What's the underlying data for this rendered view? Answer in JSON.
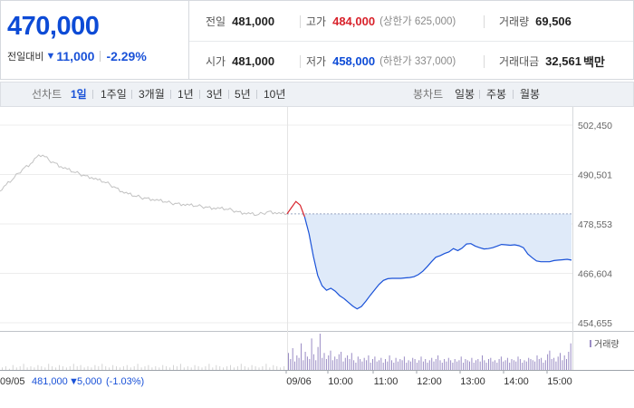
{
  "summary": {
    "price": "470,000",
    "change_label": "전일대비",
    "change_arrow": "▼",
    "change_amount": "11,000",
    "change_percent": "-2.29%",
    "stats": {
      "prev_close": {
        "label": "전일",
        "value": "481,000"
      },
      "high": {
        "label": "고가",
        "value": "484,000",
        "sub": "(상한가 625,000)"
      },
      "volume": {
        "label": "거래량",
        "value": "69,506"
      },
      "open": {
        "label": "시가",
        "value": "481,000"
      },
      "low": {
        "label": "저가",
        "value": "458,000",
        "sub": "(하한가 337,000)"
      },
      "trade_value": {
        "label": "거래대금",
        "value": "32,561",
        "unit": "백만"
      }
    }
  },
  "toolbar": {
    "line_chart_label": "선차트",
    "periods": [
      "1일",
      "1주일",
      "3개월",
      "1년",
      "3년",
      "5년",
      "10년"
    ],
    "active_period": "1일",
    "candle_label": "봉차트",
    "candles": [
      "일봉",
      "주봉",
      "월봉"
    ]
  },
  "chart_data": {
    "type": "line",
    "y_ticks": [
      "502,450",
      "490,501",
      "478,553",
      "466,604",
      "454,655"
    ],
    "y_tick_values": [
      502450,
      490501,
      478553,
      466604,
      454655
    ],
    "ylim": [
      454655,
      502450
    ],
    "reference_price": 481000,
    "x_ticks": [
      "09/06",
      "10:00",
      "11:00",
      "12:00",
      "13:00",
      "14:00",
      "15:00"
    ],
    "volume_legend": "거래량",
    "previous_day": {
      "date": "09/05",
      "close_text": "481,000",
      "arrow": "▼",
      "change_text": "5,000",
      "change_pct": "(-1.03%)"
    },
    "series": [
      {
        "values": [
          486500,
          488000,
          489200,
          490800,
          492200,
          493100,
          494700,
          495200,
          494000,
          493300,
          492400,
          491800,
          491100,
          490700,
          490200,
          489800,
          489200,
          488700,
          488100,
          487300,
          486400,
          485800,
          485300,
          485000,
          484800,
          484500,
          484200,
          483900,
          483600,
          483500,
          483300,
          483100,
          482900,
          482800,
          482600,
          482400,
          482300,
          482100,
          481900,
          481500,
          481200,
          481000,
          480700,
          481100,
          481600,
          481300,
          481000,
          481000
        ]
      },
      {
        "values": [
          481000,
          482500,
          484000,
          483100,
          480300,
          476200,
          470700,
          466100,
          463600,
          462500,
          463000,
          462300,
          461200,
          460500,
          459600,
          458700,
          458000,
          458600,
          459900,
          461300,
          462600,
          463900,
          464900,
          465300,
          465400,
          465400,
          465400,
          465500,
          465600,
          465800,
          466300,
          467100,
          468200,
          469400,
          470500,
          470900,
          471400,
          471800,
          472600,
          472100,
          472700,
          473700,
          473800,
          473200,
          472800,
          472500,
          472600,
          472800,
          473200,
          473600,
          473500,
          473400,
          473500,
          473300,
          472800,
          471300,
          470400,
          469600,
          469400,
          469400,
          469400,
          469700,
          469800,
          469900,
          470000,
          469800
        ]
      }
    ],
    "volume": [
      2,
      3,
      1,
      4,
      2,
      3,
      5,
      2,
      3,
      2,
      4,
      3,
      2,
      5,
      3,
      2,
      4,
      3,
      2,
      3,
      5,
      3,
      4,
      2,
      3,
      2,
      4,
      3,
      5,
      3,
      2,
      4,
      3,
      2,
      3,
      4,
      2,
      3,
      5,
      2,
      3,
      4,
      2,
      3,
      2,
      4,
      3,
      2,
      4,
      3,
      5,
      2,
      3,
      2,
      4,
      3,
      2,
      3,
      5,
      2,
      4,
      3,
      2,
      3,
      4,
      2,
      3,
      5,
      3,
      2,
      4,
      3,
      2,
      3,
      5,
      2,
      4,
      3,
      2,
      3,
      14,
      9,
      18,
      7,
      12,
      10,
      22,
      8,
      15,
      11,
      9,
      26,
      13,
      8,
      19,
      30,
      10,
      14,
      9,
      12,
      16,
      8,
      11,
      9,
      13,
      15,
      7,
      10,
      12,
      9,
      14,
      8,
      6,
      11,
      9,
      7,
      10,
      8,
      12,
      6,
      9,
      11,
      7,
      8,
      10,
      6,
      9,
      7,
      12,
      8,
      6,
      10,
      7,
      9,
      8,
      11,
      6,
      8,
      7,
      10,
      9,
      6,
      8,
      11,
      7,
      9,
      6,
      8,
      10,
      7,
      9,
      12,
      8,
      6,
      9,
      7,
      10,
      8,
      6,
      9,
      7,
      8,
      11,
      6,
      9,
      8,
      7,
      10,
      6,
      8,
      9,
      7,
      12,
      8,
      6,
      9,
      10,
      7,
      8,
      6,
      9,
      11,
      7,
      8,
      10,
      6,
      9,
      8,
      7,
      11,
      9,
      6,
      8,
      7,
      10,
      9,
      8,
      7,
      12,
      9,
      10,
      6,
      8,
      13,
      16,
      9,
      10,
      7,
      11,
      14,
      8,
      12,
      9,
      15,
      22
    ]
  },
  "colors": {
    "accent_blue": "#1a52d8",
    "up_red": "#d8222b",
    "fill_blue": "#dfeaf9",
    "prev_line_gray": "#c2c2c2",
    "volume_purple": "#9a8cc4"
  }
}
